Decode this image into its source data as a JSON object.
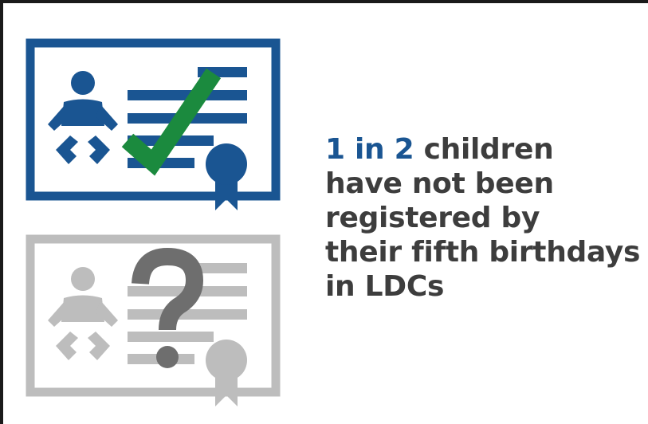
{
  "statement": {
    "highlight": "1 in 2",
    "line1_rest": " children",
    "line2": "have not been",
    "line3": "registered by",
    "line4": "their fifth birthdays",
    "line5": "in LDCs"
  },
  "colors": {
    "registered_blue": "#1a5592",
    "check_green": "#1b8a3e",
    "unregistered_gray": "#bdbdbd",
    "question_gray": "#6e6e6e",
    "text_dark": "#3d3d3d"
  },
  "icons": {
    "registered_certificate": "certificate-icon",
    "unregistered_certificate": "certificate-icon",
    "baby": "baby-icon",
    "checkmark": "checkmark-icon",
    "question_mark": "question-mark-icon",
    "seal": "seal-icon"
  }
}
